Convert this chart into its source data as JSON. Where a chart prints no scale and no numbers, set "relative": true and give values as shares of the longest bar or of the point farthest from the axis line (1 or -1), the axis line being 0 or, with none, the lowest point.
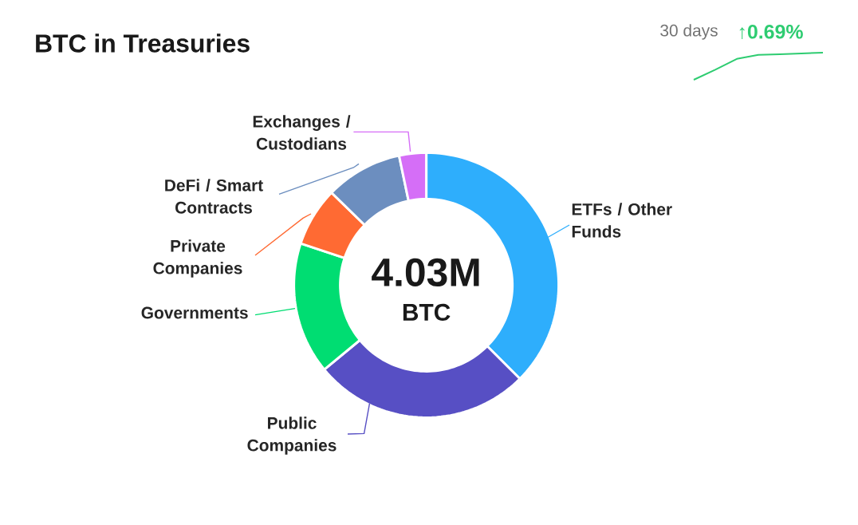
{
  "chart_data": [
    {
      "type": "donut",
      "title": "BTC in Treasuries",
      "categories": [
        "ETFs / Other Funds",
        "Public Companies",
        "Governments",
        "Private Companies",
        "DeFi / Smart Contracts",
        "Exchanges / Custodians"
      ],
      "values": [
        37.5,
        26.5,
        16.1,
        7.2,
        9.4,
        3.3
      ],
      "colors": [
        "#2eaefc",
        "#574fc4",
        "#00dd72",
        "#ff6a33",
        "#6c8ebf",
        "#d56ef7"
      ],
      "annotations": [
        "4.03M",
        "BTC"
      ]
    },
    {
      "type": "line",
      "relative": true,
      "categories": [
        null,
        null,
        null,
        null,
        null,
        null,
        null
      ],
      "values": [
        0,
        0.37,
        0.77,
        0.92,
        0.94,
        0.97,
        1
      ],
      "color": "#2ecc71",
      "annotations": [
        "30 days",
        "↑0.69%"
      ]
    }
  ]
}
